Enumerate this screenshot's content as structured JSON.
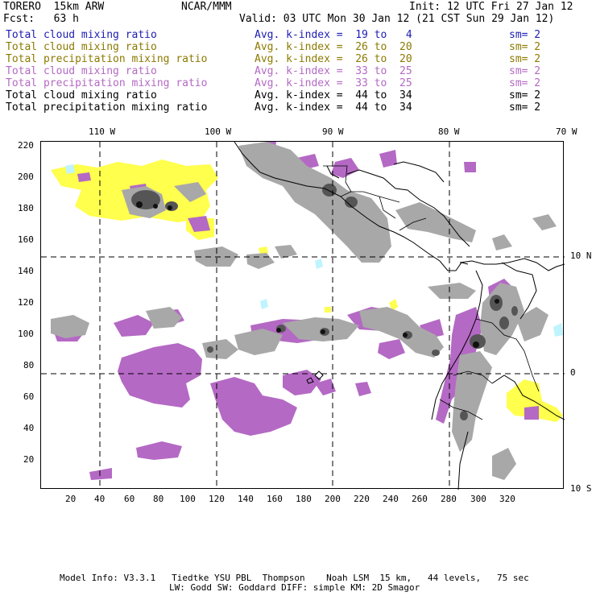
{
  "header": {
    "left1": "TORERO  15km ARW",
    "center1": "NCAR/MMM",
    "right1": "Init: 12 UTC Fri 27 Jan 12",
    "left2": "Fcst:   63 h",
    "valid": "Valid: 03 UTC Mon 30 Jan 12 (21 CST Sun 29 Jan 12)"
  },
  "legend": [
    {
      "name": "Total cloud mixing ratio",
      "kindex": "Avg. k-index =  19 to   4",
      "sm": "sm= 2",
      "color": "#1c1cb4"
    },
    {
      "name": "Total cloud mixing ratio",
      "kindex": "Avg. k-index =  26 to  20",
      "sm": "sm= 2",
      "color": "#8c7a00"
    },
    {
      "name": "Total precipitation mixing ratio",
      "kindex": "Avg. k-index =  26 to  20",
      "sm": "sm= 2",
      "color": "#8c7a00"
    },
    {
      "name": "Total cloud mixing ratio",
      "kindex": "Avg. k-index =  33 to  25",
      "sm": "sm= 2",
      "color": "#b469c4"
    },
    {
      "name": "Total precipitation mixing ratio",
      "kindex": "Avg. k-index =  33 to  25",
      "sm": "sm= 2",
      "color": "#b469c4"
    },
    {
      "name": "Total cloud mixing ratio",
      "kindex": "Avg. k-index =  44 to  34",
      "sm": "sm= 2",
      "color": "#000000"
    },
    {
      "name": "Total precipitation mixing ratio",
      "kindex": "Avg. k-index =  44 to  34",
      "sm": "sm= 2",
      "color": "#000000"
    }
  ],
  "axes": {
    "top_labels": [
      "110 W",
      "100 W",
      "90 W",
      "80 W",
      "70 W"
    ],
    "right_labels": [
      "10 N",
      "0",
      "10 S"
    ],
    "left_labels": [
      "220",
      "200",
      "180",
      "160",
      "140",
      "120",
      "100",
      "80",
      "60",
      "40",
      "20"
    ],
    "bottom_labels": [
      "20",
      "40",
      "60",
      "80",
      "100",
      "120",
      "140",
      "160",
      "180",
      "200",
      "220",
      "240",
      "260",
      "280",
      "300",
      "320"
    ]
  },
  "colors": {
    "yellow": "#ffff4d",
    "purple": "#b469c4",
    "gray_light": "#a8a8a8",
    "gray_dark": "#555555",
    "cyan": "#bff4ff"
  },
  "footer": {
    "line1": "Model Info: V3.3.1   Tiedtke YSU PBL  Thompson    Noah LSM  15 km,   44 levels,   75 sec",
    "line2": "LW: Godd SW: Goddard DIFF: simple KM: 2D Smagor"
  }
}
